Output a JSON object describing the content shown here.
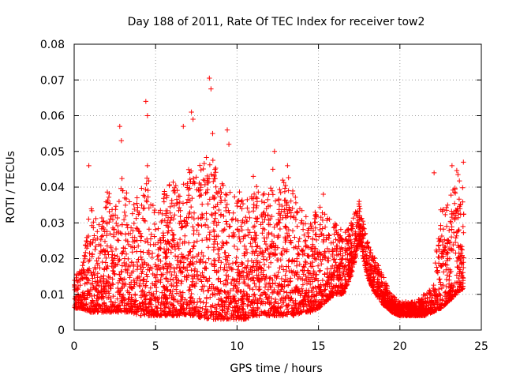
{
  "chart_data": {
    "type": "scatter",
    "title": "Day 188 of 2011, Rate Of TEC Index for receiver tow2",
    "xlabel": "GPS time / hours",
    "ylabel": "ROTI / TECUs",
    "xlim": [
      0,
      25
    ],
    "ylim": [
      0,
      0.08
    ],
    "xticks": [
      0,
      5,
      10,
      15,
      20,
      25
    ],
    "xtick_labels": [
      "0",
      "5",
      "10",
      "15",
      "20",
      "25"
    ],
    "yticks": [
      0,
      0.01,
      0.02,
      0.03,
      0.04,
      0.05,
      0.06,
      0.07,
      0.08
    ],
    "ytick_labels": [
      "0",
      "0.01",
      "0.02",
      "0.03",
      "0.04",
      "0.05",
      "0.06",
      "0.07",
      "0.08"
    ],
    "grid": true,
    "marker": "+",
    "marker_color": "#ff0000",
    "envelope_hours": [
      0,
      0.5,
      1,
      1.5,
      2,
      2.5,
      3,
      3.5,
      4,
      4.5,
      5,
      5.5,
      6,
      6.5,
      7,
      7.5,
      8,
      8.5,
      9,
      9.5,
      10,
      10.5,
      11,
      11.5,
      12,
      12.5,
      13,
      13.5,
      14,
      14.5,
      15,
      15.5,
      16,
      16.5,
      17,
      17.5,
      18,
      18.5,
      19,
      19.5,
      20,
      20.5,
      21,
      21.5,
      22,
      22.5,
      23,
      23.5,
      24
    ],
    "envelope_low": [
      0.006,
      0.006,
      0.005,
      0.005,
      0.005,
      0.005,
      0.005,
      0.005,
      0.004,
      0.004,
      0.004,
      0.004,
      0.004,
      0.004,
      0.004,
      0.004,
      0.003,
      0.003,
      0.003,
      0.003,
      0.003,
      0.003,
      0.004,
      0.004,
      0.004,
      0.004,
      0.004,
      0.004,
      0.005,
      0.005,
      0.006,
      0.008,
      0.01,
      0.01,
      0.015,
      0.025,
      0.015,
      0.01,
      0.007,
      0.005,
      0.004,
      0.004,
      0.004,
      0.004,
      0.005,
      0.006,
      0.008,
      0.01,
      0.012
    ],
    "envelope_high": [
      0.015,
      0.018,
      0.035,
      0.03,
      0.04,
      0.035,
      0.045,
      0.035,
      0.04,
      0.045,
      0.038,
      0.04,
      0.042,
      0.04,
      0.045,
      0.045,
      0.05,
      0.048,
      0.045,
      0.038,
      0.042,
      0.035,
      0.042,
      0.038,
      0.04,
      0.038,
      0.045,
      0.038,
      0.035,
      0.03,
      0.035,
      0.032,
      0.03,
      0.028,
      0.03,
      0.036,
      0.025,
      0.02,
      0.015,
      0.01,
      0.008,
      0.008,
      0.008,
      0.01,
      0.012,
      0.035,
      0.035,
      0.045,
      0.04
    ],
    "spikes": [
      {
        "x": 0.9,
        "y": 0.046
      },
      {
        "x": 2.8,
        "y": 0.057
      },
      {
        "x": 2.9,
        "y": 0.053
      },
      {
        "x": 4.4,
        "y": 0.064
      },
      {
        "x": 4.5,
        "y": 0.06
      },
      {
        "x": 4.5,
        "y": 0.046
      },
      {
        "x": 6.7,
        "y": 0.057
      },
      {
        "x": 7.2,
        "y": 0.061
      },
      {
        "x": 7.3,
        "y": 0.059
      },
      {
        "x": 8.3,
        "y": 0.0705
      },
      {
        "x": 8.4,
        "y": 0.0675
      },
      {
        "x": 8.5,
        "y": 0.055
      },
      {
        "x": 9.4,
        "y": 0.056
      },
      {
        "x": 9.5,
        "y": 0.052
      },
      {
        "x": 11.0,
        "y": 0.043
      },
      {
        "x": 12.2,
        "y": 0.045
      },
      {
        "x": 12.3,
        "y": 0.05
      },
      {
        "x": 13.1,
        "y": 0.046
      },
      {
        "x": 15.3,
        "y": 0.038
      },
      {
        "x": 17.5,
        "y": 0.036
      },
      {
        "x": 22.1,
        "y": 0.044
      },
      {
        "x": 23.2,
        "y": 0.046
      },
      {
        "x": 23.9,
        "y": 0.047
      }
    ]
  }
}
